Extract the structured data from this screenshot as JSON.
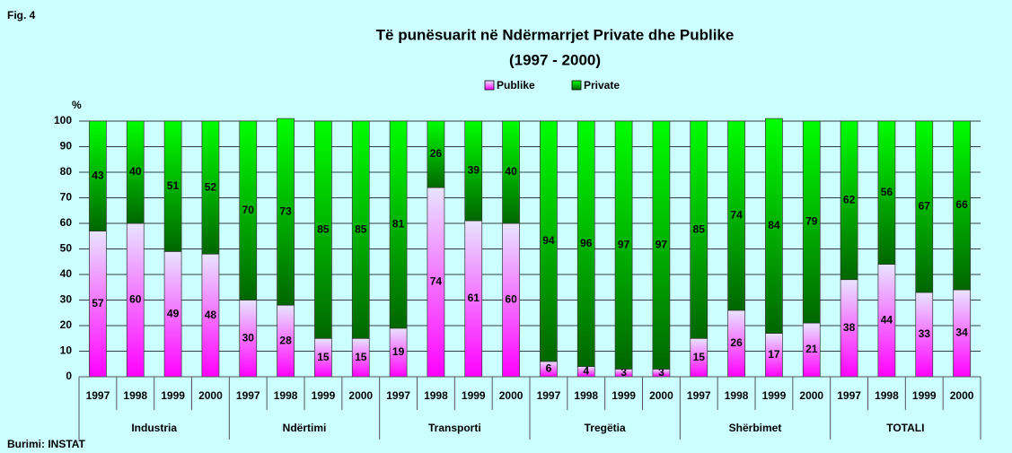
{
  "chart_data": {
    "type": "stacked_bar",
    "figure_label": "Fig. 4",
    "title": "Të punësuarit në Ndërmarrjet Private dhe Publike",
    "subtitle": "(1997 - 2000)",
    "y_label": "%",
    "source": "Burimi: INSTAT",
    "categories": [
      "1997",
      "1998",
      "1999",
      "2000",
      "1997",
      "1998",
      "1999",
      "2000",
      "1997",
      "1998",
      "1999",
      "2000",
      "1997",
      "1998",
      "1999",
      "2000",
      "1997",
      "1998",
      "1999",
      "2000",
      "1997",
      "1998",
      "1999",
      "2000"
    ],
    "groups": [
      "Industria",
      "Ndërtimi",
      "Transporti",
      "Tregëtia",
      "Shërbimet",
      "TOTALI"
    ],
    "series": [
      {
        "name": "Publike",
        "color": "#ff00ff",
        "values": [
          57,
          60,
          49,
          48,
          30,
          28,
          15,
          15,
          19,
          74,
          61,
          60,
          6,
          4,
          3,
          3,
          15,
          26,
          17,
          21,
          38,
          44,
          33,
          34
        ]
      },
      {
        "name": "Private",
        "color": "#00ff00",
        "values": [
          43,
          40,
          51,
          52,
          70,
          73,
          85,
          85,
          81,
          26,
          39,
          40,
          94,
          96,
          97,
          97,
          85,
          74,
          84,
          79,
          62,
          56,
          67,
          66
        ]
      }
    ],
    "ylim": [
      0,
      100
    ],
    "yticks": [
      0,
      10,
      20,
      30,
      40,
      50,
      60,
      70,
      80,
      90,
      100
    ],
    "grid": true,
    "legend": "top"
  }
}
